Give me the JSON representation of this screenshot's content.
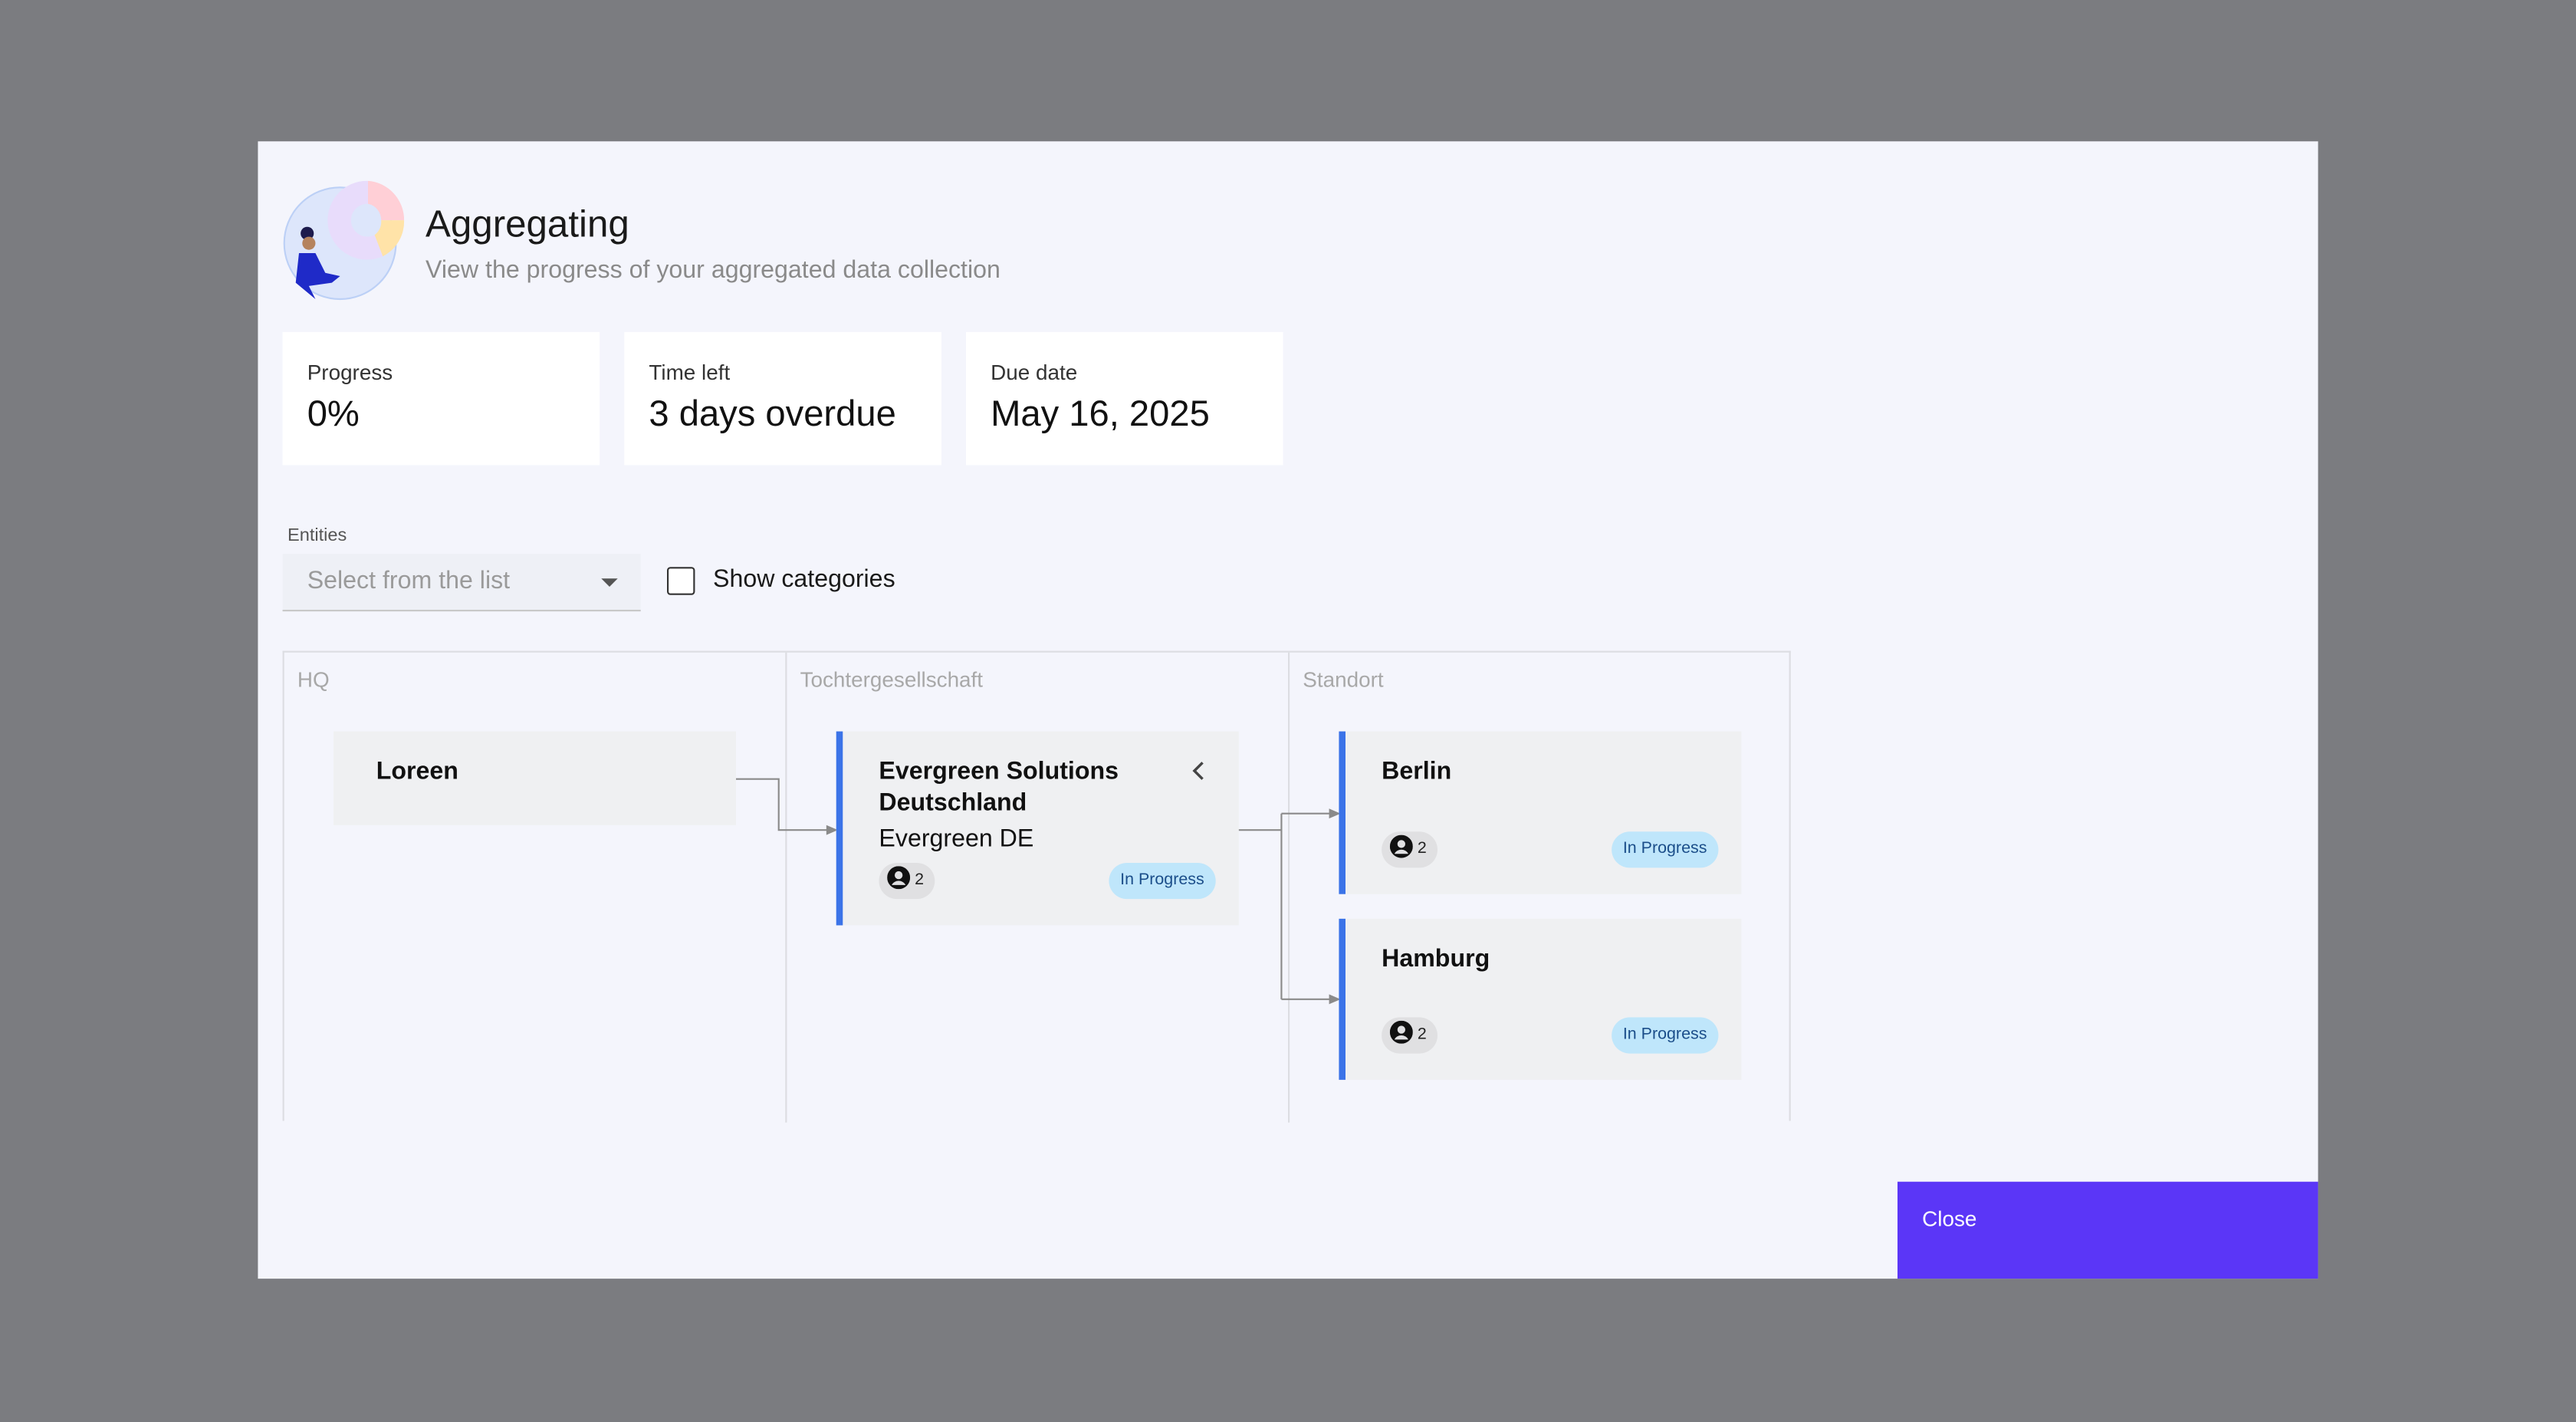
{
  "header": {
    "title": "Aggregating",
    "subtitle": "View the progress of your aggregated data collection",
    "illustration_icon": "person-with-pie-chart"
  },
  "stats": [
    {
      "label": "Progress",
      "value": "0%"
    },
    {
      "label": "Time left",
      "value": "3 days overdue"
    },
    {
      "label": "Due date",
      "value": "May 16, 2025"
    }
  ],
  "filters": {
    "entities_label": "Entities",
    "entities_placeholder": "Select from the list",
    "show_categories_label": "Show categories",
    "show_categories_checked": false
  },
  "columns": [
    "HQ",
    "Tochtergesellschaft",
    "Standort"
  ],
  "nodes": {
    "hq": {
      "name": "Loreen"
    },
    "subsidiary": {
      "name_line1": "Evergreen Solutions",
      "name_line2": "Deutschland",
      "short_name": "Evergreen DE",
      "users": "2",
      "status": "In Progress"
    },
    "locations": [
      {
        "name": "Berlin",
        "users": "2",
        "status": "In Progress"
      },
      {
        "name": "Hamburg",
        "users": "2",
        "status": "In Progress"
      }
    ]
  },
  "colors": {
    "accent": "#5b36f7",
    "card_bar": "#3b73e8",
    "status_bg": "#bfe6fb"
  },
  "footer": {
    "close_label": "Close"
  }
}
